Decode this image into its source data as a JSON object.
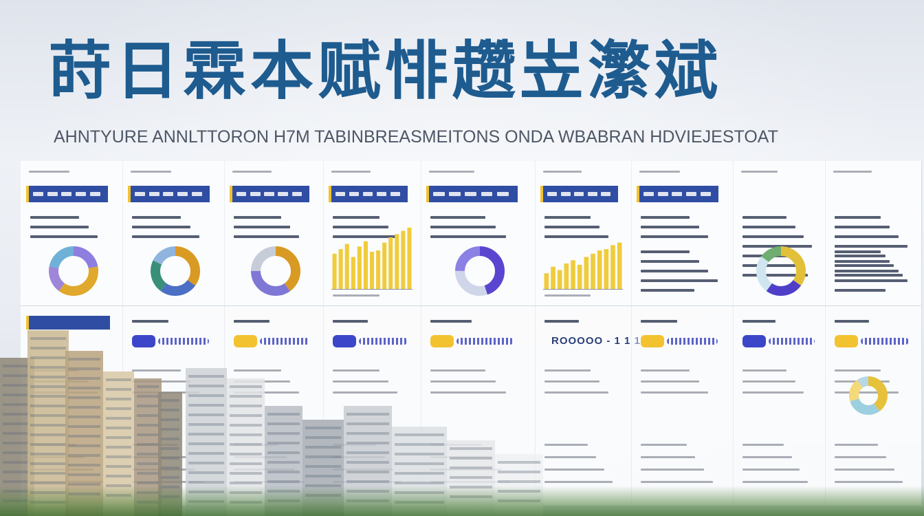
{
  "title": "莳日霖本赋悱趱岦瀿斌",
  "subtitle": "AHNTYURE ANNLTTORON H7M TABINBREASMEITONS ONDA WBABRAN HDVIEJESTOAT",
  "top_panels": [
    {
      "chart": "donut",
      "slices": [
        0.22,
        0.38,
        0.18,
        0.22
      ],
      "colors": [
        "#8d7ee0",
        "#e0a82c",
        "#9e86d8",
        "#6fb1d6"
      ]
    },
    {
      "chart": "donut",
      "slices": [
        0.35,
        0.25,
        0.22,
        0.18
      ],
      "colors": [
        "#d99a24",
        "#4b6fc4",
        "#3a8f7a",
        "#8fb4de"
      ]
    },
    {
      "chart": "donut",
      "slices": [
        0.4,
        0.35,
        0.25
      ],
      "colors": [
        "#d99a24",
        "#7f77d6",
        "#c6ccd8"
      ]
    },
    {
      "chart": "bar",
      "values": [
        0.55,
        0.62,
        0.7,
        0.5,
        0.66,
        0.74,
        0.58,
        0.6,
        0.72,
        0.8,
        0.85,
        0.9,
        0.95
      ],
      "color": "#f0cc3c"
    },
    {
      "chart": "donut",
      "slices": [
        0.45,
        0.3,
        0.25
      ],
      "colors": [
        "#5a45d0",
        "#cfd6ea",
        "#8b80e4"
      ]
    },
    {
      "chart": "bar",
      "values": [
        0.25,
        0.35,
        0.3,
        0.4,
        0.45,
        0.38,
        0.5,
        0.55,
        0.6,
        0.62,
        0.68,
        0.72
      ],
      "color": "#f0cc3c"
    },
    {
      "chart": "none"
    },
    {
      "chart": "donut",
      "slices": [
        0.35,
        0.25,
        0.25,
        0.15
      ],
      "colors": [
        "#e3c03a",
        "#4f3fc8",
        "#cfe6f0",
        "#6fae70"
      ]
    },
    {
      "chart": "none"
    }
  ],
  "bottom_values": {
    "cell5": "ROOOOO - 1 1 1"
  },
  "bottom_donut": {
    "slices": [
      0.4,
      0.3,
      0.2,
      0.1
    ],
    "colors": [
      "#e6c23a",
      "#9ccfdf",
      "#f3d978",
      "#b8d7e6"
    ]
  },
  "colors": {
    "title": "#1e5b8f",
    "header_bar": "#2f4ea3",
    "accent_yellow": "#f2c230",
    "accent_blue": "#3c46c8"
  }
}
